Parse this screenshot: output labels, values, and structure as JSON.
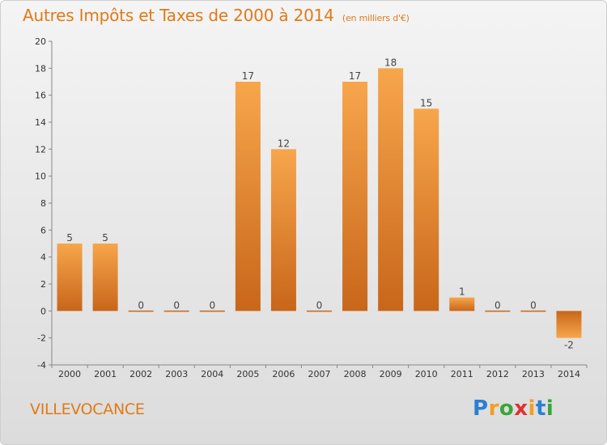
{
  "header": {
    "title": "Autres Impôts et Taxes de 2000 à 2014",
    "subtitle": "(en milliers d'€)"
  },
  "footer": {
    "commune": "VILLEVOCANCE",
    "logo": {
      "letters": [
        "P",
        "r",
        "o",
        "x",
        "i",
        "t",
        "i"
      ],
      "colors": [
        "#2a7fd4",
        "#f0a020",
        "#3aa53a",
        "#e03030",
        "#f0a020",
        "#2a7fd4",
        "#3aa53a"
      ]
    }
  },
  "chart_data": {
    "type": "bar",
    "categories": [
      "2000",
      "2001",
      "2002",
      "2003",
      "2004",
      "2005",
      "2006",
      "2007",
      "2008",
      "2009",
      "2010",
      "2011",
      "2012",
      "2013",
      "2014"
    ],
    "values": [
      5,
      5,
      0,
      0,
      0,
      17,
      12,
      0,
      17,
      18,
      15,
      1,
      0,
      0,
      -2
    ],
    "data_labels": [
      "5",
      "5",
      "0",
      "0",
      "0",
      "17",
      "12",
      "0",
      "17",
      "18",
      "15",
      "1",
      "0",
      "0",
      "-2"
    ],
    "ylim": [
      -4,
      20
    ],
    "yticks": [
      -4,
      -2,
      0,
      2,
      4,
      6,
      8,
      10,
      12,
      14,
      16,
      18,
      20
    ],
    "grid": false,
    "colors": {
      "bar_light": "#f7a64c",
      "bar_dark": "#c8661a",
      "axis": "#888888"
    }
  }
}
